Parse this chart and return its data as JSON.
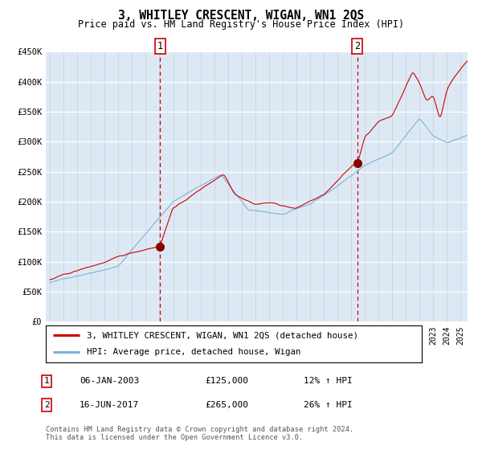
{
  "title": "3, WHITLEY CRESCENT, WIGAN, WN1 2QS",
  "subtitle": "Price paid vs. HM Land Registry's House Price Index (HPI)",
  "background_color": "#dce9f5",
  "ylim": [
    0,
    450000
  ],
  "yticks": [
    0,
    50000,
    100000,
    150000,
    200000,
    250000,
    300000,
    350000,
    400000,
    450000
  ],
  "ytick_labels": [
    "£0",
    "£50K",
    "£100K",
    "£150K",
    "£200K",
    "£250K",
    "£300K",
    "£350K",
    "£400K",
    "£450K"
  ],
  "hpi_color": "#7ab3d4",
  "property_color": "#cc0000",
  "purchase1_year": 2003.04,
  "purchase1_price": 125000,
  "purchase1_label": "1",
  "purchase1_date": "06-JAN-2003",
  "purchase1_hpi_pct": "12%",
  "purchase2_year": 2017.46,
  "purchase2_price": 265000,
  "purchase2_label": "2",
  "purchase2_date": "16-JUN-2017",
  "purchase2_hpi_pct": "26%",
  "legend_line1": "3, WHITLEY CRESCENT, WIGAN, WN1 2QS (detached house)",
  "legend_line2": "HPI: Average price, detached house, Wigan",
  "footer": "Contains HM Land Registry data © Crown copyright and database right 2024.\nThis data is licensed under the Open Government Licence v3.0.",
  "xlim_left": 1994.7,
  "xlim_right": 2025.5
}
